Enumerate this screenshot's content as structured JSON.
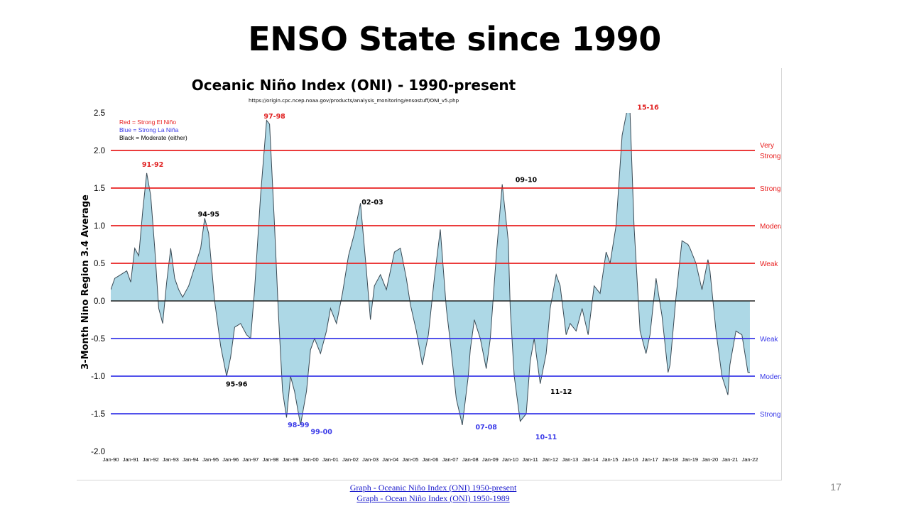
{
  "slide": {
    "title": "ENSO State since 1990",
    "page_number": "17",
    "links": [
      "Graph - Oceanic Niño Index (ONI) 1950-present",
      "Graph - Ocean Niño Index (ONI) 1950-1989"
    ]
  },
  "chart_data": {
    "type": "area",
    "title": "Oceanic Niño Index (ONI) - 1990-present",
    "subtitle": "https://origin.cpc.ncep.noaa.gov/products/analysis_monitoring/ensostuff/ONI_v5.php",
    "xlabel": "",
    "ylabel": "3-Month Nino Region 3.4 Average",
    "ylim": [
      -2.0,
      2.5
    ],
    "yticks": [
      "2.5",
      "2.0",
      "1.5",
      "1.0",
      "0.5",
      "0.0",
      "-0.5",
      "-1.0",
      "-1.5",
      "-2.0"
    ],
    "xticks": [
      "Jan-90",
      "Jan-91",
      "Jan-92",
      "Jan-93",
      "Jan-94",
      "Jan-95",
      "Jan-96",
      "Jan-97",
      "Jan-98",
      "Jan-99",
      "Jan-00",
      "Jan-01",
      "Jan-02",
      "Jan-03",
      "Jan-04",
      "Jan-05",
      "Jan-06",
      "Jan-07",
      "Jan-08",
      "Jan-09",
      "Jan-10",
      "Jan-11",
      "Jan-12",
      "Jan-13",
      "Jan-14",
      "Jan-15",
      "Jan-16",
      "Jan-17",
      "Jan-18",
      "Jan-19",
      "Jan-20",
      "Jan-21",
      "Jan-22"
    ],
    "fill_color": "#add8e6",
    "line_color": "#3a4a55",
    "series": [
      {
        "x": [
          1990.0,
          1990.2,
          1990.5,
          1990.8,
          1991.0,
          1991.2,
          1991.4,
          1991.6,
          1991.8,
          1992.0,
          1992.2,
          1992.4,
          1992.6,
          1992.8,
          1993.0,
          1993.2,
          1993.4,
          1993.6,
          1993.9,
          1994.2,
          1994.5,
          1994.7,
          1994.9,
          1995.2,
          1995.5,
          1995.8,
          1996.0,
          1996.2,
          1996.5,
          1996.8,
          1997.0,
          1997.2,
          1997.5,
          1997.8,
          1997.95,
          1998.2,
          1998.4,
          1998.6,
          1998.8,
          1999.0,
          1999.2,
          1999.5,
          1999.8,
          2000.0,
          2000.2,
          2000.5,
          2000.8,
          2001.0,
          2001.3,
          2001.6,
          2001.9,
          2002.2,
          2002.5,
          2002.8,
          2003.0,
          2003.2,
          2003.5,
          2003.8,
          2004.2,
          2004.5,
          2004.8,
          2005.0,
          2005.3,
          2005.6,
          2005.9,
          2006.2,
          2006.5,
          2006.8,
          2007.0,
          2007.3,
          2007.6,
          2007.9,
          2008.0,
          2008.2,
          2008.5,
          2008.8,
          2009.0,
          2009.3,
          2009.6,
          2009.9,
          2010.0,
          2010.2,
          2010.5,
          2010.8,
          2011.0,
          2011.2,
          2011.5,
          2011.8,
          2012.0,
          2012.3,
          2012.5,
          2012.8,
          2013.0,
          2013.3,
          2013.6,
          2013.9,
          2014.2,
          2014.5,
          2014.8,
          2015.0,
          2015.3,
          2015.6,
          2015.9,
          2016.0,
          2016.2,
          2016.5,
          2016.8,
          2017.0,
          2017.3,
          2017.6,
          2017.9,
          2018.0,
          2018.3,
          2018.6,
          2018.9,
          2019.0,
          2019.3,
          2019.6,
          2019.9,
          2020.0,
          2020.3,
          2020.6,
          2020.9,
          2021.0,
          2021.3,
          2021.6,
          2021.9,
          2022.0
        ],
        "values": [
          0.15,
          0.3,
          0.35,
          0.4,
          0.25,
          0.7,
          0.6,
          1.2,
          1.7,
          1.4,
          0.7,
          -0.1,
          -0.3,
          0.25,
          0.7,
          0.3,
          0.15,
          0.05,
          0.2,
          0.45,
          0.7,
          1.1,
          0.9,
          0.0,
          -0.6,
          -1.0,
          -0.75,
          -0.35,
          -0.3,
          -0.45,
          -0.5,
          0.15,
          1.4,
          2.4,
          2.35,
          1.0,
          -0.2,
          -1.2,
          -1.55,
          -1.0,
          -1.2,
          -1.65,
          -1.2,
          -0.65,
          -0.5,
          -0.7,
          -0.4,
          -0.1,
          -0.3,
          0.1,
          0.6,
          0.9,
          1.3,
          0.4,
          -0.25,
          0.2,
          0.35,
          0.15,
          0.65,
          0.7,
          0.3,
          -0.05,
          -0.4,
          -0.85,
          -0.45,
          0.3,
          0.95,
          -0.1,
          -0.55,
          -1.3,
          -1.65,
          -1.0,
          -0.65,
          -0.25,
          -0.5,
          -0.9,
          -0.5,
          0.6,
          1.55,
          0.8,
          -0.1,
          -1.0,
          -1.6,
          -1.5,
          -0.8,
          -0.5,
          -1.1,
          -0.7,
          -0.1,
          0.35,
          0.2,
          -0.45,
          -0.3,
          -0.4,
          -0.1,
          -0.45,
          0.2,
          0.1,
          0.65,
          0.5,
          1.0,
          2.2,
          2.6,
          2.5,
          1.0,
          -0.4,
          -0.7,
          -0.45,
          0.3,
          -0.2,
          -0.95,
          -0.85,
          0.05,
          0.8,
          0.75,
          0.7,
          0.5,
          0.15,
          0.55,
          0.4,
          -0.4,
          -1.0,
          -1.25,
          -0.85,
          -0.4,
          -0.45,
          -0.95,
          -0.95
        ]
      }
    ],
    "thresholds": [
      {
        "value": 2.0,
        "label": "Very Strong",
        "color": "#e82020"
      },
      {
        "value": 1.5,
        "label": "Strong",
        "color": "#e82020"
      },
      {
        "value": 1.0,
        "label": "Moderate",
        "color": "#e82020"
      },
      {
        "value": 0.5,
        "label": "Weak",
        "color": "#e82020"
      },
      {
        "value": -0.5,
        "label": "Weak",
        "color": "#3a3ae8"
      },
      {
        "value": -1.0,
        "label": "Moderate",
        "color": "#3a3ae8"
      },
      {
        "value": -1.5,
        "label": "Strong",
        "color": "#3a3ae8"
      }
    ],
    "legend": {
      "placement": "top-left",
      "entries": [
        {
          "text": "Red = Strong  El Niño",
          "color": "#e82020"
        },
        {
          "text": "Blue = Strong  La Niña",
          "color": "#3a3ae8"
        },
        {
          "text": "Black = Moderate  (either)",
          "color": "#000000"
        }
      ]
    },
    "annotations": [
      {
        "text": "91-92",
        "x": 1992.1,
        "y": 1.82,
        "color": "#e02020"
      },
      {
        "text": "94-95",
        "x": 1994.9,
        "y": 1.16,
        "color": "#000000"
      },
      {
        "text": "97-98",
        "x": 1998.2,
        "y": 2.46,
        "color": "#e02020"
      },
      {
        "text": "02-03",
        "x": 2003.1,
        "y": 1.32,
        "color": "#000000"
      },
      {
        "text": "09-10",
        "x": 2010.8,
        "y": 1.62,
        "color": "#000000"
      },
      {
        "text": "15-16",
        "x": 2016.9,
        "y": 2.58,
        "color": "#e02020"
      },
      {
        "text": "95-96",
        "x": 1996.3,
        "y": -1.1,
        "color": "#000000"
      },
      {
        "text": "98-99",
        "x": 1999.4,
        "y": -1.64,
        "color": "#3a3ae8"
      },
      {
        "text": "99-00",
        "x": 2000.55,
        "y": -1.73,
        "color": "#3a3ae8"
      },
      {
        "text": "07-08",
        "x": 2008.8,
        "y": -1.67,
        "color": "#3a3ae8"
      },
      {
        "text": "10-11",
        "x": 2011.8,
        "y": -1.8,
        "color": "#3a3ae8"
      },
      {
        "text": "11-12",
        "x": 2012.55,
        "y": -1.2,
        "color": "#000000"
      }
    ]
  }
}
